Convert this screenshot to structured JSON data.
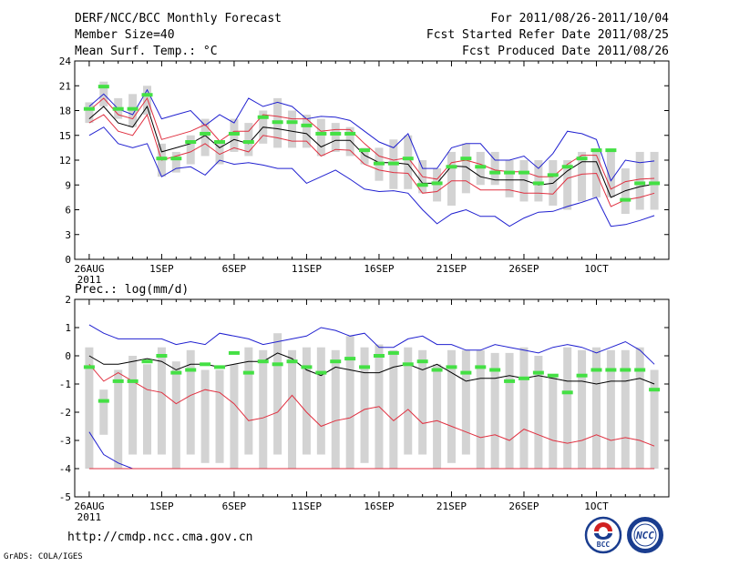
{
  "header": {
    "title": "DERF/NCC/BCC Monthly Forecast",
    "member_size": "Member Size=40",
    "variable": "Mean Surf. Temp.: °C",
    "period": "For 2011/08/26-2011/10/04",
    "refer_date": "Fcst Started Refer Date 2011/08/25",
    "produced_date": "Fcst Produced Date 2011/08/26"
  },
  "footer": {
    "url": "http://cmdp.ncc.cma.gov.cn",
    "credit": "GrADS: COLA/IGES",
    "logo_bcc": "BCC",
    "logo_ncc": "NCC"
  },
  "colors": {
    "box": "#d3d3d3",
    "median": "#000000",
    "band": "#e03040",
    "extreme": "#2020d0",
    "obs": "#44e044"
  },
  "chart_data": [
    {
      "type": "line",
      "title": "Mean Surf. Temp.: °C",
      "xlabel": "",
      "ylabel": "",
      "x": [
        1,
        2,
        3,
        4,
        5,
        6,
        7,
        8,
        9,
        10,
        11,
        12,
        13,
        14,
        15,
        16,
        17,
        18,
        19,
        20,
        21,
        22,
        23,
        24,
        25,
        26,
        27,
        28,
        29,
        30,
        31,
        32,
        33,
        34,
        35,
        36,
        37,
        38,
        39,
        40
      ],
      "xlim": [
        0,
        41
      ],
      "ylim": [
        0,
        24
      ],
      "yticks": [
        0,
        3,
        6,
        9,
        12,
        15,
        18,
        21,
        24
      ],
      "xtick_positions": [
        1,
        6,
        11,
        16,
        21,
        26,
        31,
        36
      ],
      "xtick_labels": [
        "26AUG",
        "1SEP",
        "6SEP",
        "11SEP",
        "16SEP",
        "21SEP",
        "26SEP",
        "1OCT"
      ],
      "xtick_sublabel": "2011",
      "box_low": [
        16.5,
        18.5,
        17,
        16,
        17.5,
        10,
        10.5,
        11.5,
        12.5,
        11.5,
        13,
        12.5,
        14,
        13.5,
        13.5,
        13.5,
        12.5,
        13,
        12.5,
        11.5,
        9.5,
        8.5,
        8.5,
        8,
        7,
        6.5,
        8,
        9,
        9,
        7.5,
        7,
        7,
        6.5,
        6,
        7,
        7.5,
        7.5,
        5.5,
        6,
        6
      ],
      "box_high": [
        19,
        21.5,
        19.5,
        20,
        21,
        14,
        13,
        15,
        17,
        14,
        17,
        16.5,
        18,
        19.5,
        18,
        17.5,
        17,
        16.5,
        16,
        13.5,
        13.5,
        14.5,
        15,
        12,
        11,
        13,
        14,
        13,
        13,
        12,
        12,
        12,
        12,
        12,
        13,
        13,
        13,
        11,
        13,
        13
      ],
      "series": [
        {
          "name": "max",
          "role": "extreme",
          "values": [
            18.5,
            20,
            18.2,
            17.5,
            20.5,
            17,
            17.5,
            18,
            16.2,
            17.5,
            16.5,
            19.5,
            18.5,
            19,
            18.5,
            17,
            17.3,
            17.2,
            16.8,
            15.5,
            14.2,
            13.5,
            15.2,
            11,
            11,
            13.5,
            14,
            14,
            12,
            12,
            12.5,
            11,
            12.8,
            15.5,
            15.2,
            14.5,
            9.5,
            12,
            11.7,
            11.9
          ]
        },
        {
          "name": "upper",
          "role": "band",
          "values": [
            18,
            19.5,
            17.5,
            17,
            19.5,
            14.5,
            15,
            15.5,
            16.3,
            14.3,
            15.5,
            15.5,
            17.5,
            17.3,
            17,
            17,
            15.5,
            15.7,
            15.7,
            14,
            12.5,
            12,
            12.3,
            10,
            9.7,
            11.7,
            12,
            11.5,
            10.8,
            10.6,
            10.6,
            10,
            10,
            11.5,
            12.6,
            12.6,
            8.5,
            9.4,
            9.7,
            9.8
          ]
        },
        {
          "name": "median",
          "role": "median",
          "values": [
            17,
            18.5,
            16.5,
            16,
            18.5,
            13,
            13.5,
            14,
            15,
            13.5,
            14.5,
            14,
            16,
            15.8,
            15.5,
            15.2,
            13.6,
            14.4,
            14.4,
            12.6,
            11.7,
            11.7,
            11.5,
            9.2,
            9.2,
            11.3,
            11.2,
            10,
            9.6,
            9.6,
            9.6,
            9,
            9.2,
            10.7,
            11.8,
            11.8,
            7.5,
            8.3,
            8.8,
            9.1
          ]
        },
        {
          "name": "lower",
          "role": "band",
          "values": [
            16.5,
            17.5,
            15.5,
            15,
            17.5,
            12,
            12.5,
            13,
            14,
            12.7,
            13.5,
            13,
            15,
            14.7,
            14.3,
            14.3,
            12.5,
            13.3,
            13.2,
            11.5,
            10.8,
            10.5,
            10.4,
            8,
            8.2,
            9.5,
            9.5,
            8.4,
            8.4,
            8.4,
            8,
            8,
            7.9,
            9.8,
            10.3,
            10.4,
            6.4,
            7.2,
            7.5,
            8
          ]
        },
        {
          "name": "min",
          "role": "extreme",
          "values": [
            15,
            16,
            14,
            13.5,
            14,
            10,
            11,
            11.2,
            10.2,
            12,
            11.5,
            11.7,
            11.4,
            11,
            11,
            9.2,
            10,
            10.8,
            9.7,
            8.5,
            8.2,
            8.3,
            8,
            6,
            4.3,
            5.5,
            6,
            5.2,
            5.2,
            4,
            5,
            5.7,
            5.8,
            6.4,
            6.9,
            7.5,
            4,
            4.2,
            4.7,
            5.3
          ]
        },
        {
          "name": "obs",
          "role": "obs",
          "values": [
            18.2,
            20.9,
            18.2,
            18.2,
            19.9,
            12.2,
            12.2,
            14.2,
            15.2,
            14.2,
            15.2,
            14.2,
            17.2,
            16.6,
            16.6,
            16.2,
            15.2,
            15.2,
            15.2,
            13.2,
            11.6,
            11.6,
            12.2,
            9,
            9.2,
            11.2,
            12.2,
            11.2,
            10.5,
            10.5,
            10.5,
            9.2,
            10.2,
            11.2,
            12.2,
            13.2,
            13.2,
            7.2,
            9.2,
            9.2
          ]
        }
      ]
    },
    {
      "type": "line",
      "title": "Prec.: log(mm/d)",
      "xlabel": "",
      "ylabel": "",
      "x": [
        1,
        2,
        3,
        4,
        5,
        6,
        7,
        8,
        9,
        10,
        11,
        12,
        13,
        14,
        15,
        16,
        17,
        18,
        19,
        20,
        21,
        22,
        23,
        24,
        25,
        26,
        27,
        28,
        29,
        30,
        31,
        32,
        33,
        34,
        35,
        36,
        37,
        38,
        39,
        40
      ],
      "xlim": [
        0,
        41
      ],
      "ylim": [
        -5,
        2
      ],
      "yticks": [
        -5,
        -4,
        -3,
        -2,
        -1,
        0,
        1,
        2
      ],
      "xtick_positions": [
        1,
        6,
        11,
        16,
        21,
        26,
        31,
        36
      ],
      "xtick_labels": [
        "26AUG",
        "1SEP",
        "6SEP",
        "11SEP",
        "16SEP",
        "21SEP",
        "26SEP",
        "1OCT"
      ],
      "xtick_sublabel": "2011",
      "box_low": [
        -4,
        -2.8,
        -4,
        -3.5,
        -3.5,
        -3.5,
        -4,
        -3.5,
        -3.8,
        -3.8,
        -4,
        -3.5,
        -4,
        -3.5,
        -4,
        -3.5,
        -3.5,
        -4,
        -4,
        -3.8,
        -4,
        -4,
        -3.5,
        -3.5,
        -4,
        -3.8,
        -3.5,
        -4,
        -4,
        -4,
        -4,
        -4,
        -4,
        -4,
        -4,
        -4,
        -4,
        -4,
        -4,
        -4
      ],
      "box_high": [
        0.3,
        -1.2,
        -0.5,
        0,
        -0.3,
        0.3,
        -0.2,
        0.2,
        -0.5,
        -0.5,
        -0.3,
        0.3,
        0.2,
        0.8,
        0.2,
        0.3,
        0.3,
        0.2,
        0.7,
        0.3,
        0.4,
        0.2,
        0.3,
        0.2,
        -0.3,
        0.2,
        0.2,
        0.2,
        0.1,
        0.1,
        0.3,
        0,
        -0.7,
        0.3,
        0.2,
        0.3,
        0.2,
        0.2,
        0.3,
        -0.5
      ],
      "series": [
        {
          "name": "max",
          "role": "extreme",
          "values": [
            1.1,
            0.8,
            0.6,
            0.6,
            0.6,
            0.6,
            0.4,
            0.5,
            0.4,
            0.8,
            0.7,
            0.6,
            0.4,
            0.5,
            0.6,
            0.7,
            1,
            0.9,
            0.7,
            0.8,
            0.3,
            0.3,
            0.6,
            0.7,
            0.4,
            0.4,
            0.2,
            0.2,
            0.4,
            0.3,
            0.2,
            0.1,
            0.3,
            0.4,
            0.3,
            0.1,
            0.3,
            0.5,
            0.2,
            -0.3
          ]
        },
        {
          "name": "median",
          "role": "median",
          "values": [
            0,
            -0.3,
            -0.3,
            -0.2,
            -0.1,
            -0.2,
            -0.5,
            -0.3,
            -0.3,
            -0.4,
            -0.3,
            -0.2,
            -0.2,
            0.1,
            -0.1,
            -0.5,
            -0.7,
            -0.4,
            -0.5,
            -0.6,
            -0.6,
            -0.4,
            -0.3,
            -0.5,
            -0.3,
            -0.6,
            -0.9,
            -0.8,
            -0.8,
            -0.7,
            -0.8,
            -0.7,
            -0.8,
            -0.9,
            -0.9,
            -1,
            -0.9,
            -0.9,
            -0.8,
            -1
          ]
        },
        {
          "name": "lower",
          "role": "band",
          "values": [
            -0.3,
            -0.9,
            -0.6,
            -0.9,
            -1.2,
            -1.3,
            -1.7,
            -1.4,
            -1.2,
            -1.3,
            -1.7,
            -2.3,
            -2.2,
            -2.0,
            -1.4,
            -2.0,
            -2.5,
            -2.3,
            -2.2,
            -1.9,
            -1.8,
            -2.3,
            -1.9,
            -2.4,
            -2.3,
            -2.5,
            -2.7,
            -2.9,
            -2.8,
            -3,
            -2.6,
            -2.8,
            -3,
            -3.1,
            -3,
            -2.8,
            -3,
            -2.9,
            -3,
            -3.2
          ]
        },
        {
          "name": "min",
          "role": "extreme",
          "values": [
            -2.7,
            -3.5,
            -3.8,
            -4,
            -4,
            -4,
            -4,
            -4,
            -4,
            -4,
            -4,
            -4,
            -4,
            -4,
            -4,
            -4,
            -4,
            -4,
            -4,
            -4,
            -4,
            -4,
            -4,
            -4,
            -4,
            -4,
            -4,
            -4,
            -4,
            -4,
            -4,
            -4,
            -4,
            -4,
            -4,
            -4,
            -4,
            -4,
            -4,
            -4
          ]
        },
        {
          "name": "lowest",
          "role": "band",
          "values": [
            -4,
            -4,
            -4,
            -4,
            -4,
            -4,
            -4,
            -4,
            -4,
            -4,
            -4,
            -4,
            -4,
            -4,
            -4,
            -4,
            -4,
            -4,
            -4,
            -4,
            -4,
            -4,
            -4,
            -4,
            -4,
            -4,
            -4,
            -4,
            -4,
            -4,
            -4,
            -4,
            -4,
            -4,
            -4,
            -4,
            -4,
            -4,
            -4,
            -4
          ]
        },
        {
          "name": "obs",
          "role": "obs",
          "values": [
            -0.4,
            -1.6,
            -0.9,
            -0.9,
            -0.2,
            0,
            -0.6,
            -0.5,
            -0.3,
            -0.4,
            0.1,
            -0.6,
            -0.2,
            -0.3,
            -0.2,
            -0.4,
            -0.6,
            -0.2,
            -0.1,
            -0.4,
            0,
            0.1,
            -0.3,
            -0.2,
            -0.5,
            -0.4,
            -0.6,
            -0.4,
            -0.5,
            -0.9,
            -0.8,
            -0.6,
            -0.7,
            -1.3,
            -0.7,
            -0.5,
            -0.5,
            -0.5,
            -0.5,
            -1.2
          ]
        }
      ]
    }
  ]
}
